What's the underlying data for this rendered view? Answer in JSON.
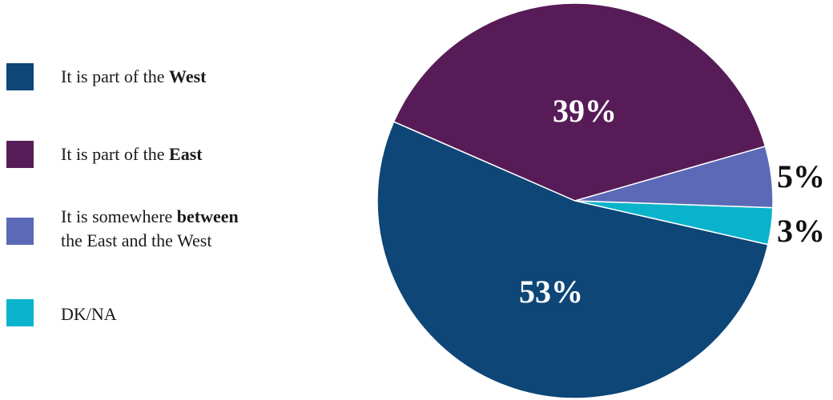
{
  "chart_data": {
    "type": "pie",
    "title": "",
    "slices": [
      {
        "name_plain": "It is part of the ",
        "name_bold": "West",
        "name_after": "",
        "value": 53,
        "label": "53%",
        "color": "#0d4677",
        "label_color": "#ffffff"
      },
      {
        "name_plain": "It is part of the ",
        "name_bold": "East",
        "name_after": "",
        "value": 39,
        "label": "39%",
        "color": "#571c58",
        "label_color": "#ffffff"
      },
      {
        "name_plain": "It is somewhere ",
        "name_bold": "between",
        "name_after": "the East and the West",
        "value": 5,
        "label": "5%",
        "color": "#5b69b7",
        "label_color": "#111111"
      },
      {
        "name_plain": "DK/NA",
        "name_bold": "",
        "name_after": "",
        "value": 3,
        "label": "3%",
        "color": "#0ab3cc",
        "label_color": "#111111"
      }
    ],
    "legend_position": "left"
  }
}
